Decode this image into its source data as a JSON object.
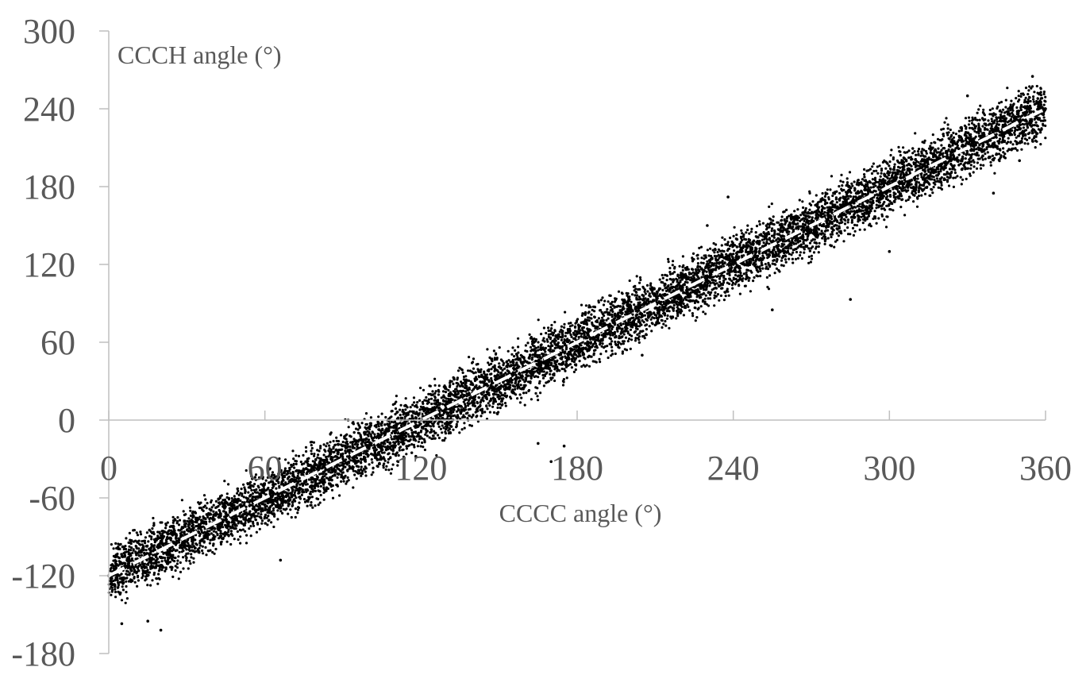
{
  "chart_data": {
    "type": "scatter",
    "title": "",
    "xlabel": "CCCC angle (°)",
    "ylabel": "CCCH angle (°)",
    "xlim": [
      0,
      360
    ],
    "ylim": [
      -180,
      300
    ],
    "xticks": [
      "0",
      "60",
      "120",
      "180",
      "240",
      "300",
      "360"
    ],
    "yticks": [
      "300",
      "240",
      "180",
      "120",
      "60",
      "0",
      "-60",
      "-120",
      "-180"
    ],
    "grid": false,
    "legend": "none",
    "series": [
      {
        "marker_color": "#000000",
        "points": [
          [
            0,
            -120
          ],
          [
            10,
            -110
          ],
          [
            20,
            -100
          ],
          [
            30,
            -90
          ],
          [
            40,
            -80
          ],
          [
            50,
            -70
          ],
          [
            60,
            -60
          ],
          [
            70,
            -50
          ],
          [
            80,
            -40
          ],
          [
            90,
            -30
          ],
          [
            100,
            -20
          ],
          [
            110,
            -10
          ],
          [
            120,
            0
          ],
          [
            130,
            10
          ],
          [
            140,
            20
          ],
          [
            150,
            30
          ],
          [
            160,
            40
          ],
          [
            170,
            50
          ],
          [
            180,
            60
          ],
          [
            190,
            70
          ],
          [
            200,
            80
          ],
          [
            210,
            90
          ],
          [
            220,
            100
          ],
          [
            230,
            110
          ],
          [
            240,
            120
          ],
          [
            250,
            130
          ],
          [
            260,
            140
          ],
          [
            270,
            150
          ],
          [
            280,
            160
          ],
          [
            290,
            170
          ],
          [
            300,
            180
          ],
          [
            310,
            190
          ],
          [
            320,
            200
          ],
          [
            330,
            210
          ],
          [
            340,
            220
          ],
          [
            350,
            230
          ],
          [
            360,
            240
          ]
        ],
        "trend": {
          "style": "dashed",
          "color": "#ffffff",
          "from": [
            0,
            -120
          ],
          "to": [
            360,
            240
          ]
        },
        "spread": 14,
        "outliers": [
          [
            20,
            -162
          ],
          [
            5,
            -157
          ],
          [
            15,
            -155
          ],
          [
            66,
            -108
          ],
          [
            92,
            0
          ],
          [
            170,
            -32
          ],
          [
            175,
            -20
          ],
          [
            165,
            -18
          ],
          [
            238,
            172
          ],
          [
            255,
            85
          ],
          [
            285,
            93
          ],
          [
            300,
            130
          ],
          [
            340,
            175
          ],
          [
            350,
            200
          ],
          [
            330,
            250
          ],
          [
            355,
            265
          ],
          [
            200,
            95
          ],
          [
            205,
            50
          ],
          [
            230,
            150
          ],
          [
            118,
            -28
          ]
        ]
      }
    ]
  }
}
